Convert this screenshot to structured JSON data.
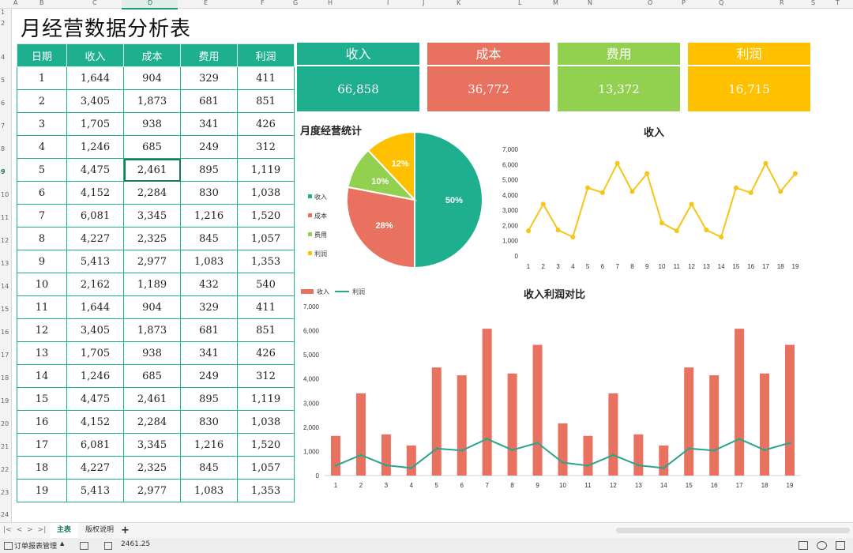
{
  "sheet": {
    "columns": [
      "A",
      "B",
      "C",
      "D",
      "E",
      "F",
      "G",
      "H",
      "I",
      "J",
      "K",
      "L",
      "M",
      "N",
      "O",
      "P",
      "Q",
      "R",
      "S",
      "T"
    ],
    "rows": [
      "1",
      "2",
      "4",
      "5",
      "6",
      "7",
      "8",
      "9",
      "10",
      "11",
      "12",
      "13",
      "14",
      "15",
      "16",
      "17",
      "18",
      "19",
      "20",
      "21",
      "22",
      "23",
      "24"
    ],
    "selected_column": "D",
    "selected_row": "9",
    "title": "月经营数据分析表"
  },
  "table": {
    "headers": [
      "日期",
      "收入",
      "成本",
      "费用",
      "利润"
    ],
    "rows": [
      [
        "1",
        "1,644",
        "904",
        "329",
        "411"
      ],
      [
        "2",
        "3,405",
        "1,873",
        "681",
        "851"
      ],
      [
        "3",
        "1,705",
        "938",
        "341",
        "426"
      ],
      [
        "4",
        "1,246",
        "685",
        "249",
        "312"
      ],
      [
        "5",
        "4,475",
        "2,461",
        "895",
        "1,119"
      ],
      [
        "6",
        "4,152",
        "2,284",
        "830",
        "1,038"
      ],
      [
        "7",
        "6,081",
        "3,345",
        "1,216",
        "1,520"
      ],
      [
        "8",
        "4,227",
        "2,325",
        "845",
        "1,057"
      ],
      [
        "9",
        "5,413",
        "2,977",
        "1,083",
        "1,353"
      ],
      [
        "10",
        "2,162",
        "1,189",
        "432",
        "540"
      ],
      [
        "11",
        "1,644",
        "904",
        "329",
        "411"
      ],
      [
        "12",
        "3,405",
        "1,873",
        "681",
        "851"
      ],
      [
        "13",
        "1,705",
        "938",
        "341",
        "426"
      ],
      [
        "14",
        "1,246",
        "685",
        "249",
        "312"
      ],
      [
        "15",
        "4,475",
        "2,461",
        "895",
        "1,119"
      ],
      [
        "16",
        "4,152",
        "2,284",
        "830",
        "1,038"
      ],
      [
        "17",
        "6,081",
        "3,345",
        "1,216",
        "1,520"
      ],
      [
        "18",
        "4,227",
        "2,325",
        "845",
        "1,057"
      ],
      [
        "19",
        "5,413",
        "2,977",
        "1,083",
        "1,353"
      ]
    ]
  },
  "kpis": [
    {
      "label": "收入",
      "value": "66,858",
      "color": "#1eaf8e"
    },
    {
      "label": "成本",
      "value": "36,772",
      "color": "#e8715f"
    },
    {
      "label": "费用",
      "value": "13,372",
      "color": "#92d050"
    },
    {
      "label": "利润",
      "value": "16,715",
      "color": "#ffc000"
    }
  ],
  "chart_data": [
    {
      "type": "pie",
      "title": "月度经营统计",
      "categories": [
        "收入",
        "成本",
        "费用",
        "利润"
      ],
      "values": [
        50,
        28,
        10,
        12
      ],
      "labels": [
        "50%",
        "28%",
        "10%",
        "12%"
      ],
      "colors": [
        "#1eaf8e",
        "#e8715f",
        "#92d050",
        "#ffc000"
      ],
      "legend": "left"
    },
    {
      "type": "line",
      "title": "收入",
      "x": [
        "1",
        "2",
        "3",
        "4",
        "5",
        "6",
        "7",
        "8",
        "9",
        "10",
        "11",
        "12",
        "13",
        "14",
        "15",
        "16",
        "17",
        "18",
        "19"
      ],
      "values": [
        1644,
        3405,
        1705,
        1246,
        4475,
        4152,
        6081,
        4227,
        5413,
        2162,
        1644,
        3405,
        1705,
        1246,
        4475,
        4152,
        6081,
        4227,
        5413
      ],
      "ylim": [
        0,
        7000
      ],
      "yticks": [
        "0",
        "1,000",
        "2,000",
        "3,000",
        "4,000",
        "5,000",
        "6,000",
        "7,000"
      ],
      "color": "#f5c518"
    },
    {
      "type": "bar",
      "title": "收入利润对比",
      "x": [
        "1",
        "2",
        "3",
        "4",
        "5",
        "6",
        "7",
        "8",
        "9",
        "10",
        "11",
        "12",
        "13",
        "14",
        "15",
        "16",
        "17",
        "18",
        "19"
      ],
      "series": [
        {
          "name": "收入",
          "type": "bar",
          "color": "#e8715f",
          "values": [
            1644,
            3405,
            1705,
            1246,
            4475,
            4152,
            6081,
            4227,
            5413,
            2162,
            1644,
            3405,
            1705,
            1246,
            4475,
            4152,
            6081,
            4227,
            5413
          ]
        },
        {
          "name": "利润",
          "type": "line",
          "color": "#2aa58b",
          "values": [
            411,
            851,
            426,
            312,
            1119,
            1038,
            1520,
            1057,
            1353,
            540,
            411,
            851,
            426,
            312,
            1119,
            1038,
            1520,
            1057,
            1353
          ]
        }
      ],
      "ylim": [
        0,
        7000
      ],
      "yticks": [
        "0",
        "1,000",
        "2,000",
        "3,000",
        "4,000",
        "5,000",
        "6,000",
        "7,000"
      ],
      "legend": "top-left"
    }
  ],
  "tabs": {
    "nav": [
      "|<",
      "<",
      ">",
      ">|"
    ],
    "sheets": [
      "主表",
      "版权说明"
    ],
    "add": "+",
    "active": "主表"
  },
  "status": {
    "macro": "订单报表管理",
    "macro_arrow": "▲",
    "value": "2461.25"
  }
}
